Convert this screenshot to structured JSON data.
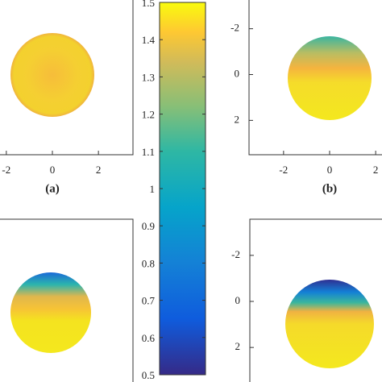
{
  "chart_data": [
    {
      "type": "field",
      "label": "(a)",
      "xlim": [
        -3.5,
        3.5
      ],
      "xticks": [
        -2,
        0,
        2
      ]
    },
    {
      "type": "field",
      "label": "(b)",
      "xlim": [
        -3.5,
        3.5
      ],
      "xticks": [
        -2,
        0,
        2
      ],
      "ylim": [
        3.5,
        -3.5
      ],
      "yticks": [
        -2,
        0,
        2
      ]
    },
    {
      "type": "field"
    },
    {
      "type": "field",
      "ylim": [
        3.5,
        -3.5
      ],
      "yticks": [
        -2,
        0,
        2
      ]
    },
    {
      "type": "colorbar",
      "ylim": [
        0.5,
        1.5
      ],
      "yticks": [
        0.5,
        0.6,
        0.7,
        0.8,
        0.9,
        1,
        1.1,
        1.2,
        1.3,
        1.4,
        1.5
      ]
    }
  ]
}
